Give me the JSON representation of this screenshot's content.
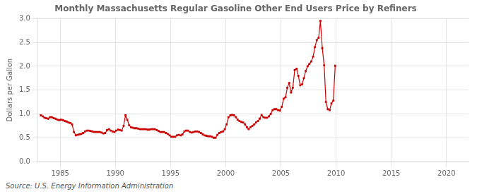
{
  "chart_data": {
    "type": "line",
    "title": "Monthly Massachusetts Regular Gasoline Other End Users Price by Refiners",
    "y_label": "Dollars per Gallon",
    "annotations": [
      "Source: U.S. Energy Information Administration"
    ],
    "color": "#cc0000",
    "marker": "square",
    "grid": true,
    "xlim": [
      1983.0,
      2022.0
    ],
    "ylim": [
      0.0,
      3.0
    ],
    "xticks": [
      1985,
      1990,
      1995,
      2000,
      2005,
      2010,
      2015,
      2020
    ],
    "yticks": [
      {
        "value": 0.0,
        "label": "0.0"
      },
      0.5,
      {
        "value": 1.0,
        "label": "1.0"
      },
      1.5,
      {
        "value": 2.0,
        "label": "2.0"
      },
      2.5,
      {
        "value": 3.0,
        "label": "3.0"
      }
    ],
    "x": [
      1983.25,
      1983.42,
      1983.58,
      1983.75,
      1983.92,
      1984.08,
      1984.25,
      1984.42,
      1984.58,
      1984.75,
      1984.92,
      1985.08,
      1985.25,
      1985.42,
      1985.58,
      1985.75,
      1985.92,
      1986.08,
      1986.25,
      1986.42,
      1986.58,
      1986.75,
      1986.92,
      1987.08,
      1987.25,
      1987.42,
      1987.58,
      1987.75,
      1987.92,
      1988.08,
      1988.25,
      1988.42,
      1988.58,
      1988.75,
      1988.92,
      1989.08,
      1989.25,
      1989.42,
      1989.58,
      1989.75,
      1989.92,
      1990.08,
      1990.25,
      1990.42,
      1990.58,
      1990.75,
      1990.92,
      1991.08,
      1991.25,
      1991.42,
      1991.58,
      1991.75,
      1991.92,
      1992.08,
      1992.25,
      1992.42,
      1992.58,
      1992.75,
      1992.92,
      1993.08,
      1993.25,
      1993.42,
      1993.58,
      1993.75,
      1993.92,
      1994.08,
      1994.25,
      1994.42,
      1994.58,
      1994.75,
      1994.92,
      1995.08,
      1995.25,
      1995.42,
      1995.58,
      1995.75,
      1995.92,
      1996.08,
      1996.25,
      1996.42,
      1996.58,
      1996.75,
      1996.92,
      1997.08,
      1997.25,
      1997.42,
      1997.58,
      1997.75,
      1997.92,
      1998.08,
      1998.25,
      1998.42,
      1998.58,
      1998.75,
      1998.92,
      1999.08,
      1999.25,
      1999.42,
      1999.58,
      1999.75,
      1999.92,
      2000.08,
      2000.25,
      2000.42,
      2000.58,
      2000.75,
      2000.92,
      2001.08,
      2001.25,
      2001.42,
      2001.58,
      2001.75,
      2001.92,
      2002.08,
      2002.25,
      2002.42,
      2002.58,
      2002.75,
      2002.92,
      2003.08,
      2003.25,
      2003.42,
      2003.58,
      2003.75,
      2003.92,
      2004.08,
      2004.25,
      2004.42,
      2004.58,
      2004.75,
      2004.92,
      2005.08,
      2005.25,
      2005.42,
      2005.58,
      2005.75,
      2005.92,
      2006.08,
      2006.25,
      2006.42,
      2006.58,
      2006.75,
      2006.92,
      2007.08,
      2007.25,
      2007.42,
      2007.58,
      2007.75,
      2007.92,
      2008.08,
      2008.25,
      2008.42,
      2008.58,
      2008.75,
      2008.92,
      2009.08,
      2009.25,
      2009.42,
      2009.58,
      2009.75,
      2009.92
    ],
    "values": [
      0.97,
      0.95,
      0.92,
      0.91,
      0.9,
      0.93,
      0.93,
      0.91,
      0.9,
      0.88,
      0.87,
      0.88,
      0.87,
      0.85,
      0.84,
      0.82,
      0.81,
      0.78,
      0.62,
      0.55,
      0.56,
      0.57,
      0.58,
      0.6,
      0.63,
      0.65,
      0.65,
      0.64,
      0.63,
      0.62,
      0.62,
      0.62,
      0.62,
      0.61,
      0.59,
      0.6,
      0.66,
      0.68,
      0.65,
      0.63,
      0.62,
      0.65,
      0.67,
      0.66,
      0.65,
      0.75,
      0.97,
      0.88,
      0.76,
      0.72,
      0.71,
      0.7,
      0.7,
      0.69,
      0.68,
      0.68,
      0.68,
      0.68,
      0.67,
      0.67,
      0.68,
      0.68,
      0.68,
      0.66,
      0.64,
      0.62,
      0.62,
      0.62,
      0.6,
      0.58,
      0.55,
      0.52,
      0.52,
      0.52,
      0.55,
      0.56,
      0.55,
      0.57,
      0.63,
      0.65,
      0.65,
      0.62,
      0.61,
      0.62,
      0.63,
      0.63,
      0.62,
      0.6,
      0.57,
      0.55,
      0.54,
      0.53,
      0.53,
      0.52,
      0.5,
      0.5,
      0.56,
      0.6,
      0.62,
      0.63,
      0.68,
      0.78,
      0.93,
      0.97,
      0.98,
      0.97,
      0.93,
      0.88,
      0.85,
      0.83,
      0.82,
      0.78,
      0.72,
      0.68,
      0.72,
      0.75,
      0.78,
      0.82,
      0.85,
      0.9,
      0.98,
      0.93,
      0.92,
      0.92,
      0.95,
      1.0,
      1.08,
      1.1,
      1.1,
      1.08,
      1.07,
      1.15,
      1.32,
      1.35,
      1.55,
      1.65,
      1.45,
      1.55,
      1.92,
      1.95,
      1.8,
      1.6,
      1.62,
      1.75,
      1.9,
      2.0,
      2.05,
      2.1,
      2.2,
      2.4,
      2.55,
      2.6,
      2.95,
      2.38,
      2.02,
      1.25,
      1.1,
      1.08,
      1.22,
      1.28,
      2.01
    ]
  }
}
